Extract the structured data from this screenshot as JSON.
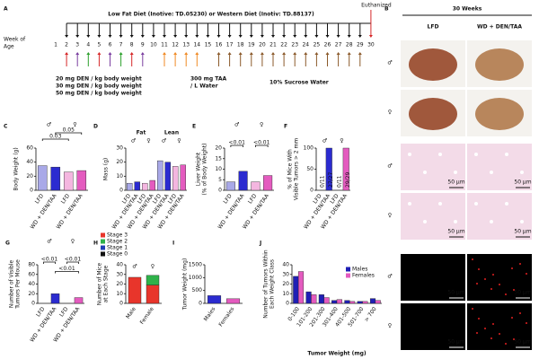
{
  "panel_a": {
    "letter": "A",
    "diet": "Low Fat Diet (Inotive: TD.05230) or Western Diet (Inotiv: TD.88137)",
    "endpoint": "Euthanized",
    "axis_label": [
      "Week of",
      "Age"
    ],
    "weeks": [
      1,
      2,
      3,
      4,
      5,
      6,
      7,
      8,
      9,
      10,
      11,
      12,
      13,
      14,
      15,
      16,
      17,
      18,
      19,
      20,
      21,
      22,
      23,
      24,
      25,
      26,
      27,
      28,
      29,
      30
    ],
    "treatments": [
      {
        "label": [
          "20 mg DEN / kg body weight"
        ],
        "color": "#d62728",
        "weeks": [
          2,
          5,
          8
        ]
      },
      {
        "label": [
          "30 mg DEN / kg body weight"
        ],
        "color": "#7b3fa0",
        "weeks": [
          3,
          6,
          9
        ]
      },
      {
        "label": [
          "50 mg DEN / kg body weight"
        ],
        "color": "#2ca02c",
        "weeks": [
          4,
          7
        ]
      },
      {
        "label": [
          "300 mg TAA",
          "/ L Water"
        ],
        "color": "#f08a24",
        "weeks": [
          11,
          12,
          13,
          14
        ]
      },
      {
        "label": [
          "10% Sucrose Water"
        ],
        "color": "#8b5a2b",
        "weeks": [
          16,
          17,
          18,
          19,
          20,
          21,
          22,
          23,
          24,
          25,
          26,
          27,
          28,
          29
        ]
      }
    ]
  },
  "panel_b": {
    "letter": "B",
    "time": "30 Weeks",
    "columns": [
      "LFD",
      "WD + DEN/TAA"
    ],
    "rows": [
      "♂",
      "♀",
      "♂",
      "♀",
      "♂",
      "♀"
    ],
    "scale_bars": [
      "50 µm",
      "50 µm",
      "50 µm",
      "50 µm",
      "50 µm",
      "50 µm",
      "50 µm",
      "50 µm"
    ]
  },
  "chart_data": [
    {
      "type": "bar",
      "panel": "C",
      "ylabel": [
        "Body Weight (g)"
      ],
      "subgroups": [
        "♂",
        "♀"
      ],
      "categories": [
        "LFD",
        "WD + DEN/TAA",
        "LFD",
        "WD + DEN/TAA"
      ],
      "values": [
        35,
        33,
        26,
        28
      ],
      "colors": [
        "#a9a9e8",
        "#2b2bd0",
        "#f4b6e0",
        "#e45bbf"
      ],
      "ylim": [
        0,
        60
      ],
      "yticks": [
        0,
        20,
        40,
        60
      ],
      "annotations": [
        "0.03",
        "0.05"
      ]
    },
    {
      "type": "bar",
      "panel": "D",
      "ylabel": [
        "Mass (g)"
      ],
      "groups": [
        "Fat",
        "Lean"
      ],
      "subgroups": [
        "♂",
        "♀",
        "♂",
        "♀"
      ],
      "categories": [
        "LFD",
        "WD + DEN/TAA",
        "LFD",
        "WD + DEN/TAA",
        "LFD",
        "WD + DEN/TAA",
        "LFD",
        "WD + DEN/TAA"
      ],
      "values": [
        5,
        6,
        5,
        7,
        21,
        20,
        17,
        18
      ],
      "colors": [
        "#a9a9e8",
        "#2b2bd0",
        "#f4b6e0",
        "#e45bbf",
        "#a9a9e8",
        "#2b2bd0",
        "#f4b6e0",
        "#e45bbf"
      ],
      "ylim": [
        0,
        30
      ],
      "yticks": [
        0,
        10,
        20,
        30
      ]
    },
    {
      "type": "bar",
      "panel": "E",
      "ylabel": [
        "Liver Weight",
        "(% of Body Weight)"
      ],
      "subgroups": [
        "♂",
        "♀"
      ],
      "categories": [
        "LFD",
        "WD + DEN/TAA",
        "LFD",
        "WD + DEN/TAA"
      ],
      "values": [
        4,
        9,
        4,
        7
      ],
      "colors": [
        "#a9a9e8",
        "#2b2bd0",
        "#f4b6e0",
        "#e45bbf"
      ],
      "ylim": [
        0,
        20
      ],
      "yticks": [
        0,
        5,
        10,
        15,
        20
      ],
      "annotations": [
        "<0.01",
        "<0.01"
      ]
    },
    {
      "type": "bar",
      "panel": "F",
      "ylabel": [
        "% of Mice With",
        "Visible Tumors > 2 mm"
      ],
      "subgroups": [
        "♂",
        "♀"
      ],
      "categories": [
        "LFD",
        "WD + DEN/TAA",
        "LFD",
        "WD + DEN/TAA"
      ],
      "values": [
        0,
        100,
        0,
        100
      ],
      "value_labels": [
        "0/11",
        "27/27",
        "0/11",
        "29/29"
      ],
      "colors": [
        "#a9a9e8",
        "#2b2bd0",
        "#f4b6e0",
        "#e45bbf"
      ],
      "ylim": [
        0,
        100
      ],
      "yticks": [
        0,
        50,
        100
      ]
    },
    {
      "type": "bar",
      "panel": "G",
      "ylabel": [
        "Number of Visible",
        "Tumors Per Mouse"
      ],
      "subgroups": [
        "♂",
        "♀"
      ],
      "categories": [
        "LFD",
        "WD + DEN/TAA",
        "LFD",
        "WD + DEN/TAA"
      ],
      "values": [
        0,
        20,
        0,
        12
      ],
      "colors": [
        "#a9a9e8",
        "#2b2bd0",
        "#f4b6e0",
        "#e45bbf"
      ],
      "ylim": [
        0,
        80
      ],
      "yticks": [
        0,
        20,
        40,
        60,
        80
      ],
      "annotations": [
        "<0.01",
        "<0.01",
        "<0.01"
      ]
    },
    {
      "type": "bar",
      "stacked": true,
      "panel": "H",
      "ylabel": [
        "Number of Mice",
        "at Each Stage"
      ],
      "subgroups": [
        "♂",
        "♀"
      ],
      "categories": [
        "Male",
        "Female"
      ],
      "series": [
        {
          "name": "Stage 3",
          "color": "#e8352b",
          "values": [
            27,
            19
          ]
        },
        {
          "name": "Stage 2",
          "color": "#2fb24a",
          "values": [
            0,
            10
          ]
        },
        {
          "name": "Stage 1",
          "color": "#1f3fb5",
          "values": [
            0,
            0
          ]
        },
        {
          "name": "Stage 0",
          "color": "#111111",
          "values": [
            0,
            0
          ]
        }
      ],
      "ylim": [
        0,
        40
      ],
      "yticks": [
        0,
        10,
        20,
        30,
        40
      ]
    },
    {
      "type": "bar",
      "panel": "I",
      "ylabel": [
        "Tumor Weight (mg)"
      ],
      "categories": [
        "Males",
        "Females"
      ],
      "values": [
        300,
        180
      ],
      "colors": [
        "#2b2bd0",
        "#e45bbf"
      ],
      "ylim": [
        0,
        1500
      ],
      "yticks": [
        0,
        500,
        1000,
        1500
      ]
    },
    {
      "type": "bar",
      "panel": "J",
      "ylabel": [
        "Number of Tumors Within",
        "Each Weight Class"
      ],
      "xlabel": "Tumor Weight (mg)",
      "categories": [
        "0-100",
        "101-200",
        "201-300",
        "301-400",
        "401-500",
        "501-700",
        "> 700"
      ],
      "series": [
        {
          "name": "Males",
          "color": "#1f1fb5",
          "values": [
            28,
            12,
            9,
            3,
            3,
            2,
            5
          ]
        },
        {
          "name": "Females",
          "color": "#e45bbf",
          "values": [
            33,
            9,
            6,
            4,
            2,
            2,
            3
          ]
        }
      ],
      "ylim": [
        0,
        40
      ],
      "yticks": [
        0,
        10,
        20,
        30,
        40
      ]
    }
  ]
}
